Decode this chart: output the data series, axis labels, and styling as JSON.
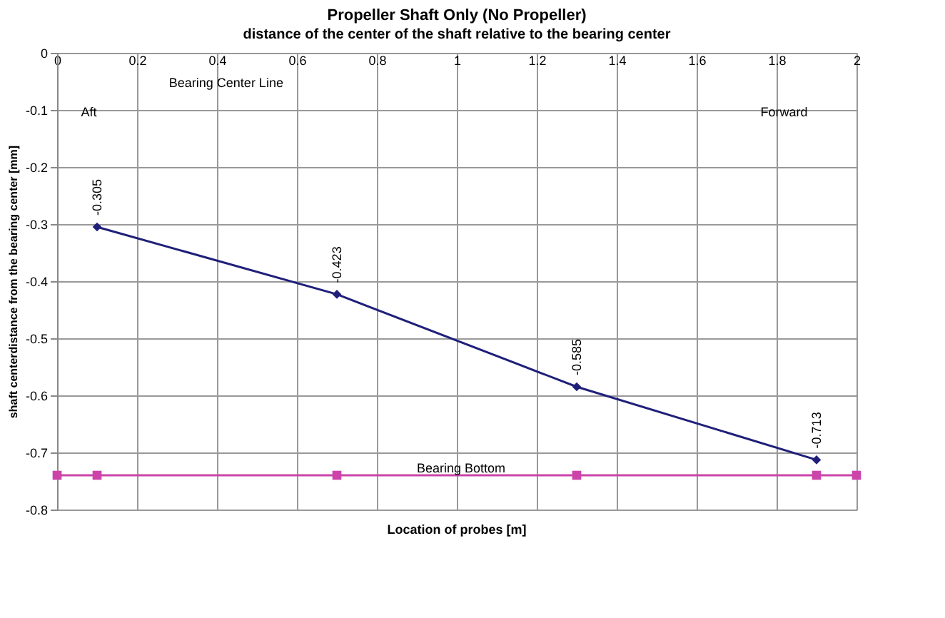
{
  "chart_data": {
    "type": "line",
    "title": "Propeller Shaft Only (No Propeller)",
    "subtitle": "distance of the center of the shaft relative to the bearing center",
    "xlabel": "Location of probes [m]",
    "ylabel": "shaft centerdistance from the bearing center [mm]",
    "xlim": [
      0,
      2
    ],
    "xticks": [
      0,
      0.2,
      0.4,
      0.6,
      0.8,
      1,
      1.2,
      1.4,
      1.6,
      1.8,
      2
    ],
    "annotations": [
      "Bearing Center Line",
      "Aft",
      "Forward",
      "Bearing Bottom"
    ],
    "ylim": [
      -0.8,
      0
    ],
    "yticks": [
      -0.8,
      -0.7,
      -0.6,
      -0.5,
      -0.4,
      -0.3,
      -0.2,
      -0.1,
      0
    ],
    "grid": true,
    "series": [
      {
        "color": "#1f1f7a",
        "marker": "diamond",
        "x": [
          0.1,
          0.7,
          1.3,
          1.9
        ],
        "values": [
          -0.305,
          -0.423,
          -0.585,
          -0.713
        ],
        "value_labels": [
          "-0.305",
          "-0.423",
          "-0.585",
          "-0.713"
        ]
      },
      {
        "color": "#cc44aa",
        "marker": "square",
        "x": [
          0,
          0.1,
          0.7,
          1.3,
          1.9,
          2
        ],
        "values": [
          -0.74,
          -0.74,
          -0.74,
          -0.74,
          -0.74,
          -0.74
        ]
      }
    ]
  }
}
